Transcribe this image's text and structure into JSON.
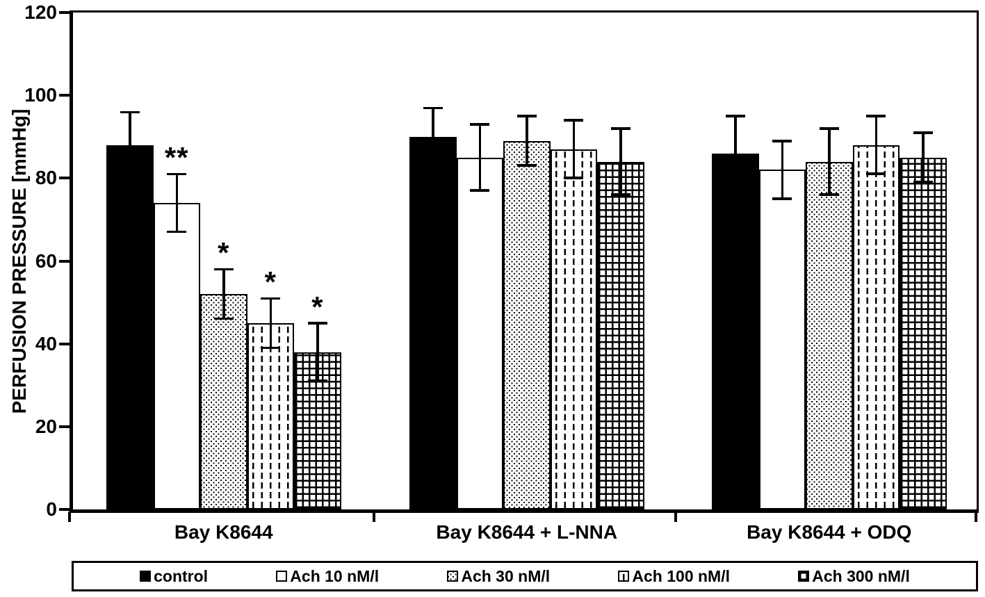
{
  "chart_data": {
    "type": "bar",
    "title": "",
    "xlabel": "",
    "ylabel": "PERFUSION PRESSURE [mmHg]",
    "ylim": [
      0,
      120
    ],
    "yticks": [
      0,
      20,
      40,
      60,
      80,
      100,
      120
    ],
    "grid": false,
    "legend_position": "bottom-box",
    "categories": [
      "Bay K8644",
      "Bay K8644 + L-NNA",
      "Bay K8644 + ODQ"
    ],
    "series": [
      {
        "name": "control",
        "fill": "solid-black",
        "values": [
          88,
          90,
          86
        ],
        "errors": [
          8,
          7,
          9
        ],
        "significance": [
          "",
          "",
          ""
        ]
      },
      {
        "name": "Ach 10 nM/l",
        "fill": "open-white",
        "values": [
          74,
          85,
          82
        ],
        "errors": [
          7,
          8,
          7
        ],
        "significance": [
          "**",
          "",
          ""
        ]
      },
      {
        "name": "Ach 30 nM/l",
        "fill": "fine-dots",
        "values": [
          52,
          89,
          84
        ],
        "errors": [
          6,
          6,
          8
        ],
        "significance": [
          "*",
          "",
          ""
        ]
      },
      {
        "name": "Ach 100 nM/l",
        "fill": "vertical-dashes",
        "values": [
          45,
          87,
          88
        ],
        "errors": [
          6,
          7,
          7
        ],
        "significance": [
          "*",
          "",
          ""
        ]
      },
      {
        "name": "Ach 300 nM/l",
        "fill": "grid-hatch",
        "values": [
          38,
          84,
          85
        ],
        "errors": [
          7,
          8,
          6
        ],
        "significance": [
          "*",
          "",
          ""
        ]
      }
    ],
    "colors": {
      "ink": "#000000",
      "background": "#ffffff"
    }
  }
}
